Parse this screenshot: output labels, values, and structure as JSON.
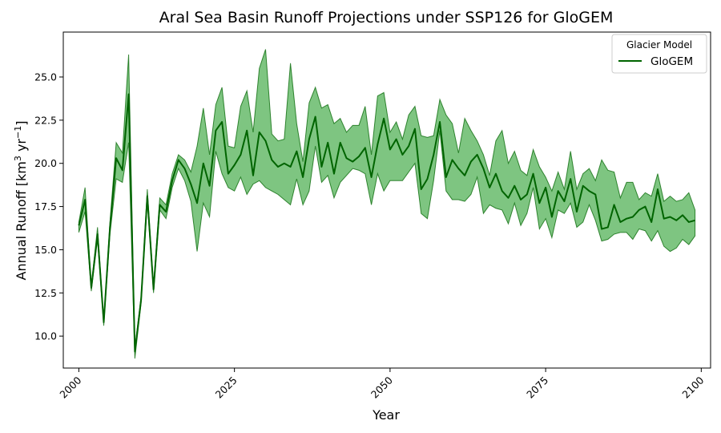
{
  "chart_data": {
    "type": "line",
    "title": "Aral Sea Basin Runoff Projections under SSP126 for GloGEM",
    "xlabel": "Year",
    "ylabel_main": "Annual Runoff [km",
    "ylabel_sup1": "3",
    "ylabel_mid": " yr",
    "ylabel_sup2": "−1",
    "ylabel_end": "]",
    "xlim": [
      1997.5,
      2101.5
    ],
    "ylim": [
      8.15,
      27.6
    ],
    "xticks": [
      2000,
      2025,
      2050,
      2075,
      2100
    ],
    "yticks": [
      "10.0",
      "12.5",
      "15.0",
      "17.5",
      "20.0",
      "22.5",
      "25.0"
    ],
    "legend": {
      "title": "Glacier Model",
      "position": "top-right"
    },
    "colors": {
      "line": "#006400",
      "band": "#4CAF50"
    },
    "series": [
      {
        "name": "GloGEM",
        "x": [
          2000,
          2001,
          2002,
          2003,
          2004,
          2005,
          2006,
          2007,
          2008,
          2009,
          2010,
          2011,
          2012,
          2013,
          2014,
          2015,
          2016,
          2017,
          2018,
          2019,
          2020,
          2021,
          2022,
          2023,
          2024,
          2025,
          2026,
          2027,
          2028,
          2029,
          2030,
          2031,
          2032,
          2033,
          2034,
          2035,
          2036,
          2037,
          2038,
          2039,
          2040,
          2041,
          2042,
          2043,
          2044,
          2045,
          2046,
          2047,
          2048,
          2049,
          2050,
          2051,
          2052,
          2053,
          2054,
          2055,
          2056,
          2057,
          2058,
          2059,
          2060,
          2061,
          2062,
          2063,
          2064,
          2065,
          2066,
          2067,
          2068,
          2069,
          2070,
          2071,
          2072,
          2073,
          2074,
          2075,
          2076,
          2077,
          2078,
          2079,
          2080,
          2081,
          2082,
          2083,
          2084,
          2085,
          2086,
          2087,
          2088,
          2089,
          2090,
          2091,
          2092,
          2093,
          2094,
          2095,
          2096,
          2097,
          2098,
          2099
        ],
        "mean": [
          16.4,
          17.9,
          12.8,
          15.9,
          10.8,
          16.3,
          20.3,
          19.6,
          24.0,
          9.1,
          12.1,
          18.1,
          12.7,
          17.6,
          17.2,
          19.0,
          20.2,
          19.7,
          18.8,
          17.7,
          20.0,
          18.7,
          21.9,
          22.4,
          19.4,
          19.9,
          20.5,
          21.9,
          19.3,
          21.8,
          21.3,
          20.2,
          19.8,
          20.0,
          19.8,
          20.7,
          19.2,
          21.4,
          22.7,
          19.8,
          21.2,
          19.4,
          21.2,
          20.3,
          20.1,
          20.4,
          20.9,
          19.2,
          21.1,
          22.6,
          20.8,
          21.4,
          20.5,
          21.0,
          22.0,
          18.5,
          19.1,
          20.5,
          22.4,
          19.2,
          20.2,
          19.7,
          19.3,
          20.1,
          20.5,
          19.7,
          18.6,
          19.4,
          18.4,
          18.0,
          18.7,
          17.9,
          18.2,
          19.4,
          17.7,
          18.6,
          16.9,
          18.4,
          17.8,
          19.1,
          17.2,
          18.7,
          18.4,
          18.2,
          16.2,
          16.3,
          17.6,
          16.6,
          16.8,
          16.9,
          17.3,
          17.5,
          16.6,
          18.5,
          16.8,
          16.9,
          16.7,
          17.0,
          16.6,
          16.7
        ],
        "upper": [
          16.6,
          18.6,
          12.9,
          16.3,
          10.9,
          16.6,
          21.2,
          20.6,
          26.3,
          9.3,
          12.3,
          18.5,
          12.9,
          18.0,
          17.6,
          19.4,
          20.5,
          20.2,
          19.5,
          21.0,
          23.2,
          20.5,
          23.4,
          24.4,
          21.0,
          20.9,
          23.3,
          24.2,
          21.8,
          25.5,
          26.6,
          21.7,
          21.3,
          21.4,
          25.8,
          22.3,
          20.1,
          23.5,
          24.4,
          23.2,
          23.4,
          22.3,
          22.6,
          21.8,
          22.2,
          22.2,
          23.3,
          20.5,
          23.9,
          24.1,
          21.8,
          22.4,
          21.4,
          22.8,
          23.3,
          21.6,
          21.5,
          21.6,
          23.7,
          22.8,
          22.3,
          20.6,
          22.6,
          21.9,
          21.3,
          20.5,
          19.3,
          21.3,
          21.9,
          20.0,
          20.7,
          19.6,
          19.3,
          20.8,
          19.8,
          19.2,
          18.4,
          19.5,
          18.5,
          20.7,
          18.5,
          19.4,
          19.7,
          19.0,
          20.2,
          19.6,
          19.5,
          18.0,
          18.9,
          18.9,
          17.9,
          18.3,
          18.1,
          19.4,
          17.8,
          18.1,
          17.8,
          17.9,
          18.3,
          17.3
        ],
        "lower": [
          16.0,
          17.2,
          12.6,
          15.6,
          10.6,
          15.9,
          19.1,
          18.9,
          21.2,
          8.7,
          11.9,
          17.8,
          12.5,
          17.3,
          16.8,
          18.6,
          19.7,
          19.0,
          17.8,
          14.9,
          17.7,
          16.9,
          20.7,
          19.4,
          18.6,
          18.4,
          19.2,
          18.2,
          18.8,
          19.0,
          18.6,
          18.4,
          18.2,
          17.9,
          17.6,
          19.1,
          17.6,
          18.4,
          21.0,
          18.9,
          19.3,
          18.0,
          18.9,
          19.3,
          19.7,
          19.6,
          19.4,
          17.6,
          19.4,
          18.4,
          19.0,
          19.0,
          19.0,
          19.5,
          20.0,
          17.1,
          16.8,
          19.0,
          21.9,
          18.4,
          17.9,
          17.9,
          17.8,
          18.2,
          19.2,
          17.1,
          17.6,
          17.4,
          17.3,
          16.5,
          17.7,
          16.4,
          17.1,
          18.6,
          16.2,
          16.8,
          15.7,
          17.3,
          17.1,
          17.7,
          16.3,
          16.6,
          17.6,
          16.7,
          15.5,
          15.6,
          15.9,
          16.0,
          16.0,
          15.6,
          16.2,
          16.1,
          15.5,
          16.1,
          15.2,
          14.9,
          15.1,
          15.6,
          15.3,
          15.8
        ]
      }
    ]
  }
}
